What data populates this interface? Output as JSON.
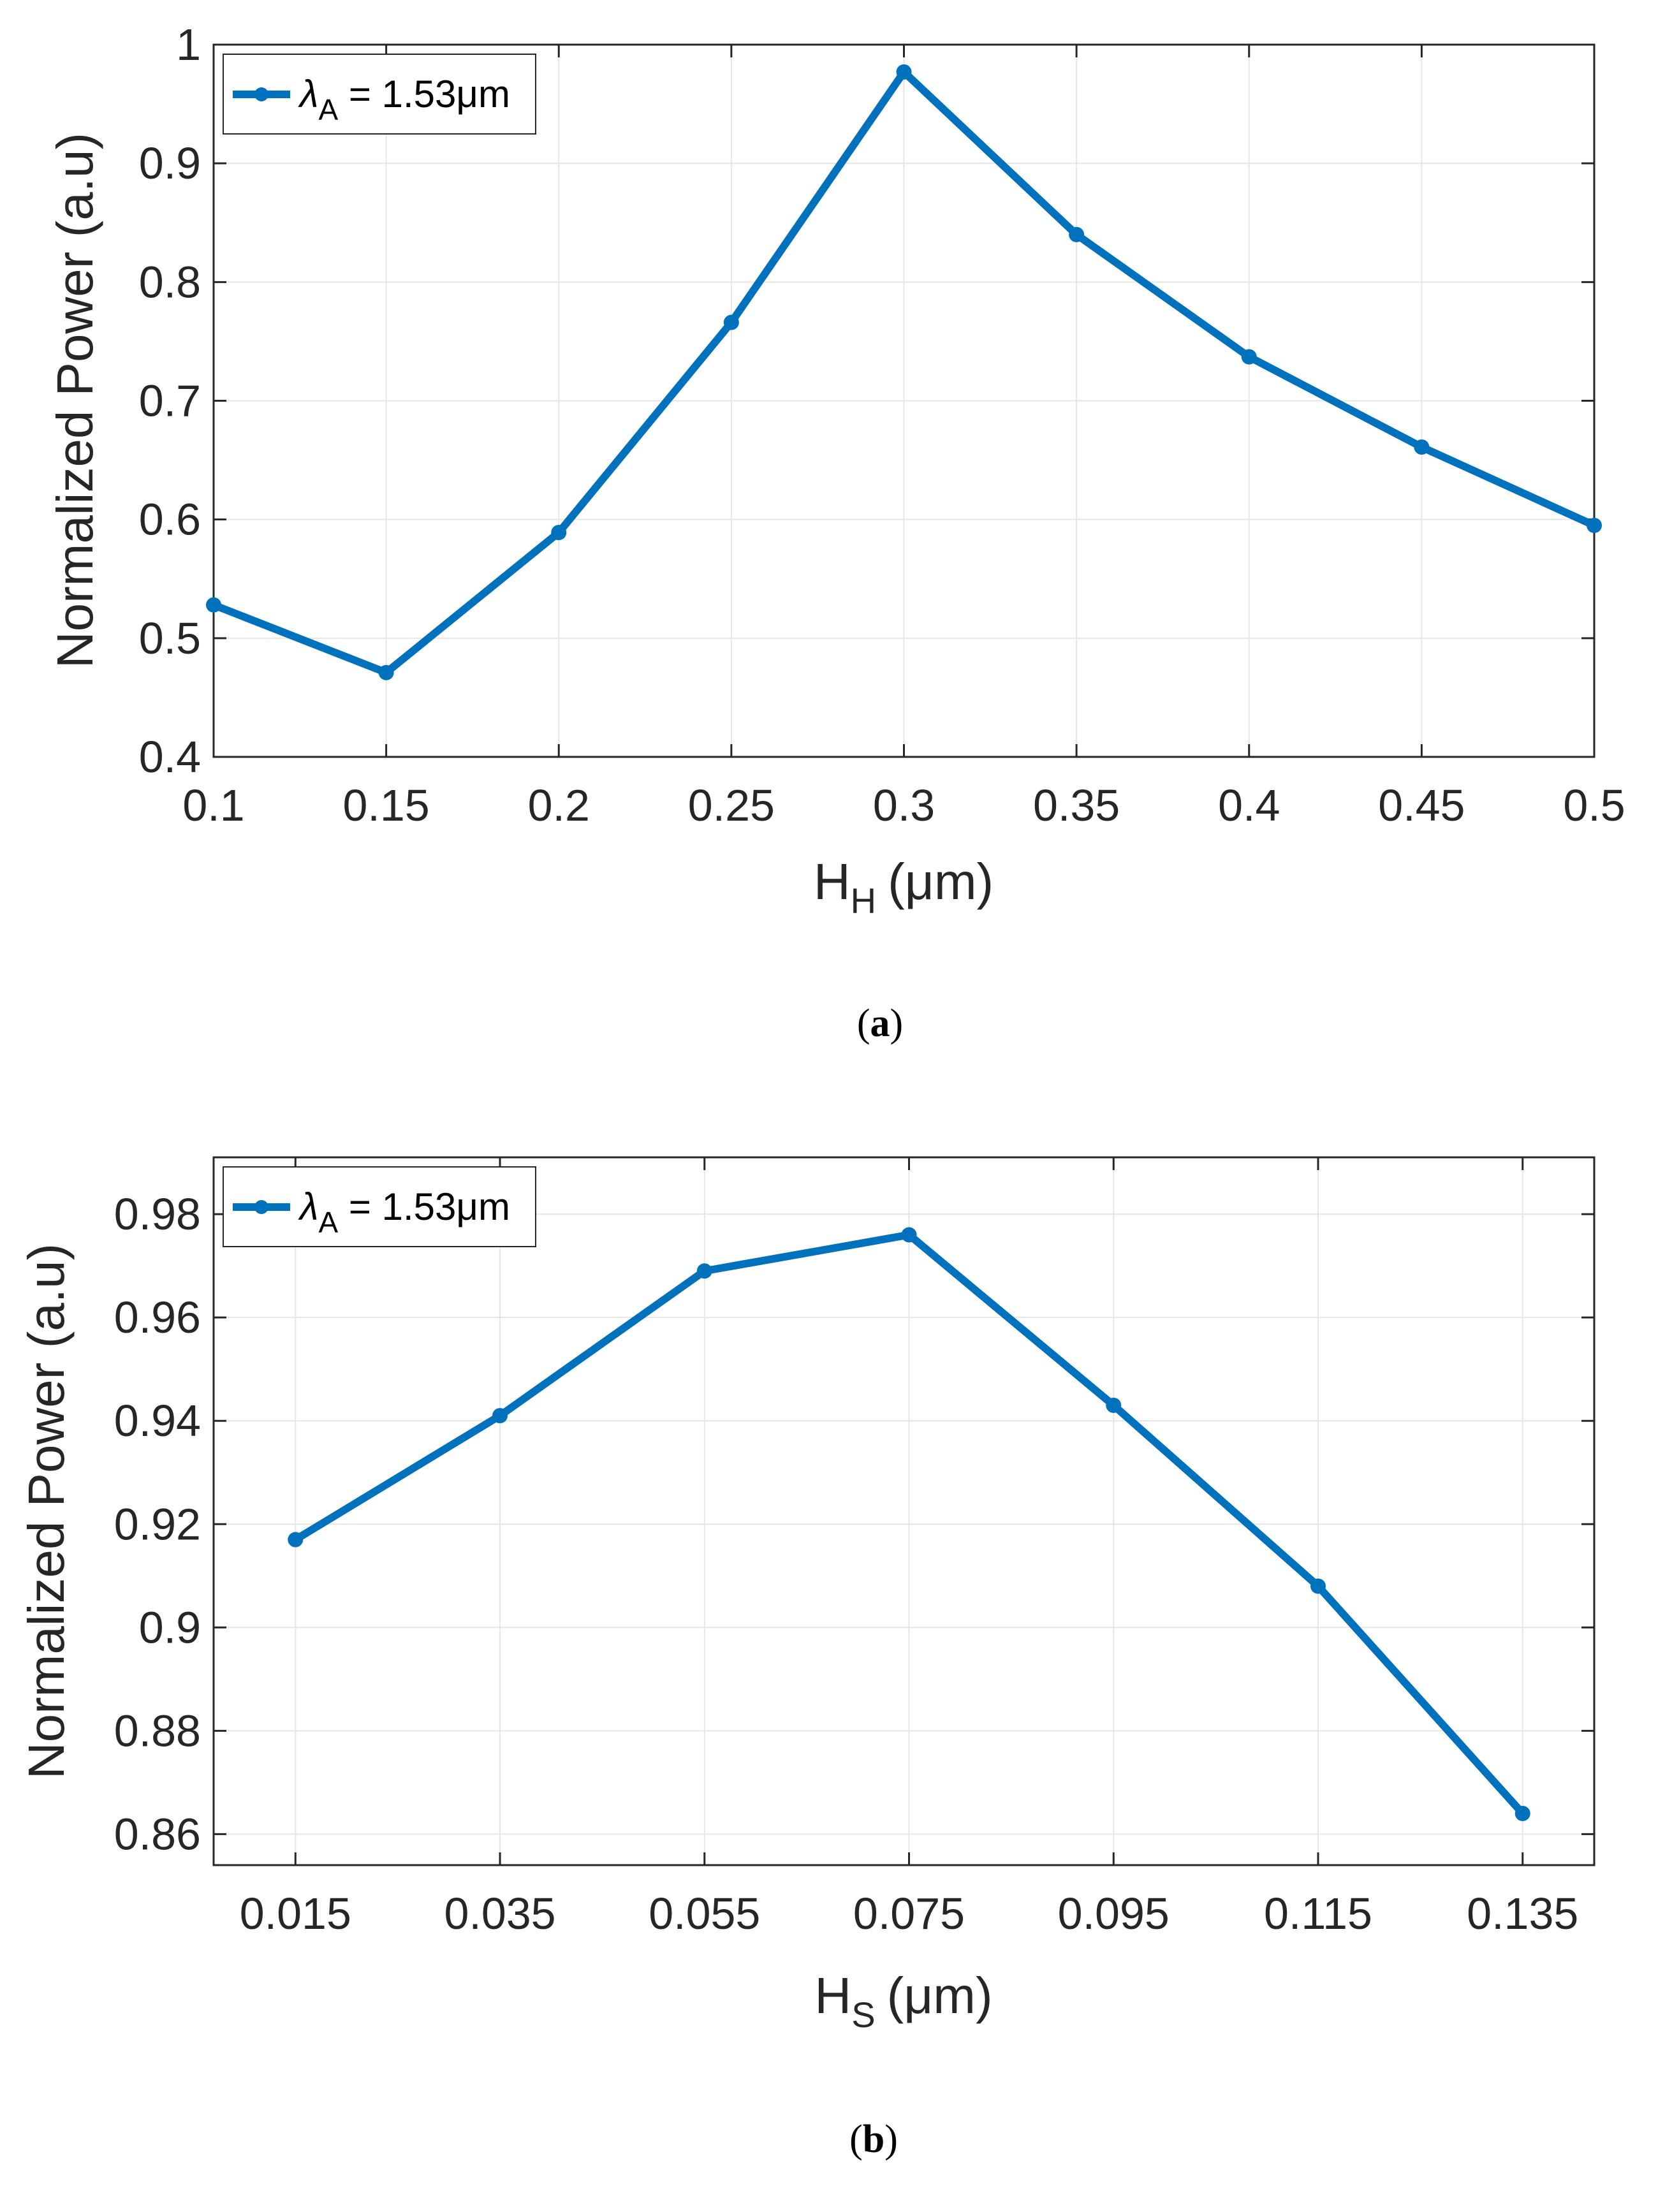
{
  "colors": {
    "series": "#0072bd",
    "axis": "#262626",
    "grid": "#e6e6e6"
  },
  "chart_data": [
    {
      "type": "line",
      "panel": "a",
      "caption_letter": "a",
      "xlabel_main": "H",
      "xlabel_sub": "H",
      "xlabel_unit": "(μm)",
      "ylabel": "Normalized Power (a.u)",
      "x": [
        0.1,
        0.15,
        0.2,
        0.25,
        0.3,
        0.35,
        0.4,
        0.45,
        0.5
      ],
      "x_tick_labels": [
        "0.1",
        "0.15",
        "0.2",
        "0.25",
        "0.3",
        "0.35",
        "0.4",
        "0.45",
        "0.5"
      ],
      "xlim": [
        0.1,
        0.5
      ],
      "y_ticks": [
        0.4,
        0.5,
        0.6,
        0.7,
        0.8,
        0.9,
        1
      ],
      "y_tick_labels": [
        "0.4",
        "0.5",
        "0.6",
        "0.7",
        "0.8",
        "0.9",
        "1"
      ],
      "ylim": [
        0.4,
        1.0
      ],
      "grid": true,
      "legend_position": "top-left",
      "series": [
        {
          "legend_symbol": "λ",
          "legend_sub": "A",
          "legend_rest": " = 1.53μm",
          "values": [
            0.528,
            0.471,
            0.589,
            0.766,
            0.977,
            0.84,
            0.737,
            0.661,
            0.595
          ]
        }
      ]
    },
    {
      "type": "line",
      "panel": "b",
      "caption_letter": "b",
      "xlabel_main": "H",
      "xlabel_sub": "S",
      "xlabel_unit": "(μm)",
      "ylabel": "Normalized Power (a.u)",
      "x": [
        0.015,
        0.035,
        0.055,
        0.075,
        0.095,
        0.115,
        0.135
      ],
      "x_tick_labels": [
        "0.015",
        "0.035",
        "0.055",
        "0.075",
        "0.095",
        "0.115",
        "0.135"
      ],
      "xlim": [
        0.007,
        0.142
      ],
      "y_ticks": [
        0.86,
        0.88,
        0.9,
        0.92,
        0.94,
        0.96,
        0.98
      ],
      "y_tick_labels": [
        "0.86",
        "0.88",
        "0.9",
        "0.92",
        "0.94",
        "0.96",
        "0.98"
      ],
      "ylim": [
        0.854,
        0.991
      ],
      "grid": true,
      "legend_position": "top-left",
      "series": [
        {
          "legend_symbol": "λ",
          "legend_sub": "A",
          "legend_rest": " = 1.53μm",
          "values": [
            0.917,
            0.941,
            0.969,
            0.976,
            0.943,
            0.908,
            0.864
          ]
        }
      ]
    }
  ]
}
